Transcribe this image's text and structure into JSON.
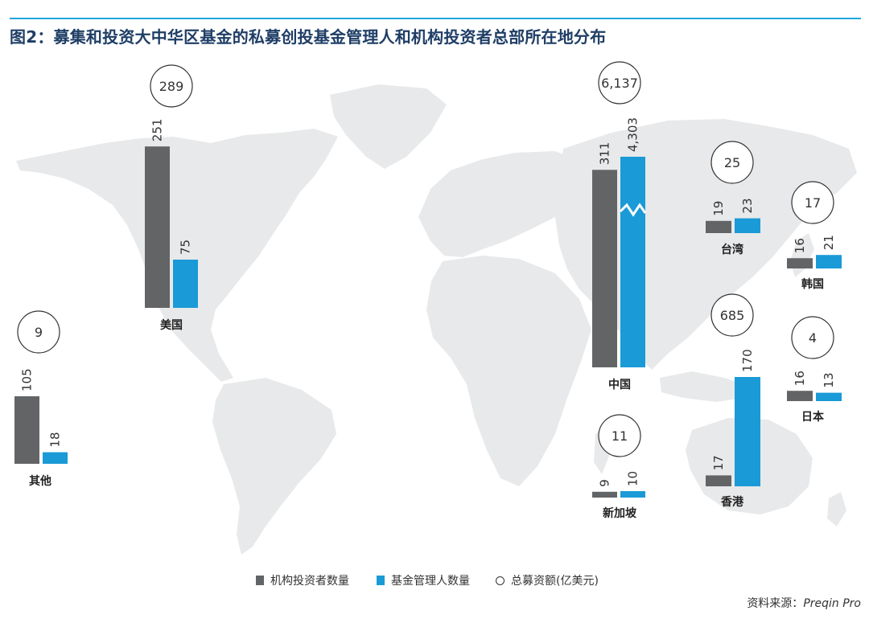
{
  "title": "图2：募集和投资大中华区基金的私募创投基金管理人和机构投资者总部所在地分布",
  "colors": {
    "investors": "#636466",
    "managers": "#1a9ad6",
    "map": "#e8e9ea",
    "rule": "#20a6de",
    "title": "#1f3e66"
  },
  "legend": {
    "investors": "机构投资者数量",
    "managers": "基金管理人数量",
    "capital": "总募资额(亿美元)"
  },
  "source": {
    "label": "资料来源：",
    "name": "Preqin Pro"
  },
  "chart_data": {
    "type": "bar",
    "categories": [
      "美国",
      "中国",
      "台湾",
      "韩国",
      "香港",
      "日本",
      "新加坡",
      "其他"
    ],
    "series": [
      {
        "name": "机构投资者数量",
        "values": [
          251,
          311,
          19,
          16,
          17,
          16,
          9,
          105
        ]
      },
      {
        "name": "基金管理人数量",
        "values": [
          75,
          4303,
          23,
          21,
          170,
          13,
          10,
          18
        ]
      }
    ],
    "value_labels": {
      "investors": [
        "251",
        "311",
        "19",
        "16",
        "17",
        "16",
        "9",
        "105"
      ],
      "managers": [
        "75",
        "4,303",
        "23",
        "21",
        "170",
        "13",
        "10",
        "18"
      ]
    },
    "capital_labels": [
      "289",
      "6,137",
      "25",
      "17",
      "685",
      "4",
      "11",
      "9"
    ],
    "axis_break": "中国",
    "grid": false,
    "legend_position": "bottom"
  }
}
